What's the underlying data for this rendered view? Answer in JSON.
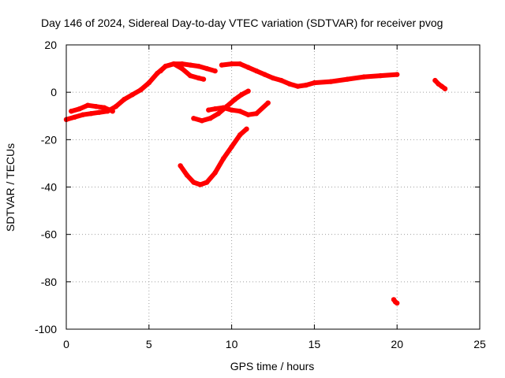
{
  "chart_data": {
    "type": "scatter",
    "title": "Day 146 of 2024, Sidereal Day-to-day VTEC variation (SDTVAR) for receiver pvog",
    "xlabel": "GPS time / hours",
    "ylabel": "SDTVAR / TECUs",
    "xlim": [
      0,
      25
    ],
    "ylim": [
      -100,
      20
    ],
    "xticks": [
      0,
      5,
      10,
      15,
      20,
      25
    ],
    "yticks": [
      -100,
      -80,
      -60,
      -40,
      -20,
      0,
      20
    ],
    "xtick_labels": [
      "0",
      "5",
      "10",
      "15",
      "20",
      "25"
    ],
    "ytick_labels": [
      "-100",
      "-80",
      "-60",
      "-40",
      "-20",
      "0",
      "20"
    ],
    "grid": true,
    "legend": "none",
    "color": "#ff0000",
    "series": [
      {
        "name": "arc-main-early",
        "x": [
          0.0,
          0.5,
          1.0,
          1.5,
          2.0,
          2.5,
          3.0,
          3.5,
          4.0,
          4.5,
          5.0,
          5.5,
          6.0,
          6.5,
          7.0,
          7.5,
          8.0,
          8.5,
          9.0
        ],
        "y": [
          -11.5,
          -10.5,
          -9.5,
          -9,
          -8.5,
          -8,
          -6,
          -3,
          -1,
          1,
          4,
          8,
          11,
          12,
          12,
          11.5,
          11,
          10,
          9
        ]
      },
      {
        "name": "arc-upper-band",
        "x": [
          0.3,
          0.8,
          1.3,
          1.8,
          2.3,
          2.8
        ],
        "y": [
          -8,
          -7,
          -5.5,
          -6,
          -6.5,
          -8
        ]
      },
      {
        "name": "arc-dip",
        "x": [
          5.7,
          6.0,
          6.5,
          7.0,
          7.5,
          8.0,
          8.3
        ],
        "y": [
          9,
          11,
          12,
          10,
          7,
          6,
          5.5
        ]
      },
      {
        "name": "arc-main-late",
        "x": [
          9.4,
          10.0,
          10.5,
          11.0,
          11.5,
          12.0,
          12.5,
          13.0,
          13.5,
          14.0,
          14.5,
          15.0,
          16.0,
          17.0,
          18.0,
          19.0,
          20.0
        ],
        "y": [
          11.5,
          12,
          12,
          10.5,
          9,
          7.5,
          6,
          5,
          3.5,
          2.5,
          3,
          4,
          4.5,
          5.5,
          6.5,
          7,
          7.5
        ]
      },
      {
        "name": "arc-mid-cross",
        "x": [
          7.7,
          8.2,
          8.7,
          9.2,
          9.7,
          10.2,
          10.6,
          11.0
        ],
        "y": [
          -11,
          -12,
          -11,
          -9,
          -6,
          -3,
          -1,
          0.5
        ]
      },
      {
        "name": "arc-mid-lower",
        "x": [
          8.6,
          9.0,
          9.5,
          10.0,
          10.5,
          11.0,
          11.5,
          12.2
        ],
        "y": [
          -7.5,
          -7,
          -6.5,
          -7.5,
          -8,
          -9.5,
          -9,
          -4.5
        ]
      },
      {
        "name": "arc-deep-dip",
        "x": [
          6.9,
          7.3,
          7.7,
          8.1,
          8.5,
          9.0,
          9.5,
          10.0,
          10.5,
          10.9
        ],
        "y": [
          -31,
          -35,
          -38,
          -39,
          -38,
          -34,
          -28,
          -23,
          -18,
          -15.5
        ]
      },
      {
        "name": "arc-late-short",
        "x": [
          22.3,
          22.5,
          22.7,
          22.9
        ],
        "y": [
          5,
          3.5,
          2.5,
          1.5
        ]
      },
      {
        "name": "arc-outlier",
        "x": [
          19.8,
          19.9,
          20.0
        ],
        "y": [
          -87.5,
          -88.5,
          -89
        ]
      }
    ]
  }
}
